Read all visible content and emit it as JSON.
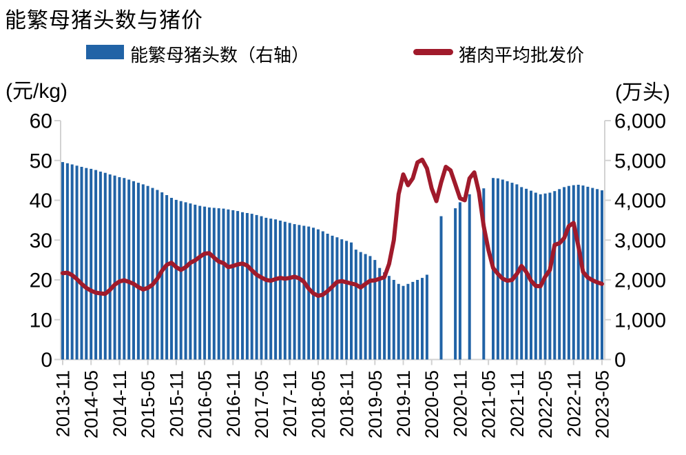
{
  "title": "能繁母猪头数与猪价",
  "legend": {
    "items": [
      {
        "label": "能繁母猪头数（右轴）",
        "type": "bar",
        "color": "#2163A6"
      },
      {
        "label": "猪肉平均批发价",
        "type": "line",
        "color": "#A01A2B"
      }
    ]
  },
  "left_axis": {
    "unit": "(元/kg)",
    "ticks": [
      "60",
      "50",
      "40",
      "30",
      "20",
      "10",
      "0"
    ]
  },
  "right_axis": {
    "unit": "(万头)",
    "ticks": [
      "6,000",
      "5,000",
      "4,000",
      "3,000",
      "2,000",
      "1,000",
      "0"
    ]
  },
  "x_axis": {
    "tick_labels": [
      "2013-11",
      "2014-05",
      "2014-11",
      "2015-05",
      "2015-11",
      "2016-05",
      "2016-11",
      "2017-05",
      "2017-11",
      "2018-05",
      "2018-11",
      "2019-05",
      "2019-11",
      "2020-05",
      "2020-11",
      "2021-05",
      "2021-11",
      "2022-05",
      "2022-11",
      "2023-05"
    ]
  },
  "chart_data": {
    "type": "bar",
    "subtype": "combo-bar-line-dual-axis",
    "title": "能繁母猪头数与猪价",
    "x_start": "2013-11",
    "x_frequency": "monthly",
    "x_end": "2023-05",
    "left_ylabel": "(元/kg)",
    "right_ylabel": "(万头)",
    "left_ylim": [
      0,
      60
    ],
    "right_ylim": [
      0,
      6000
    ],
    "grid": false,
    "legend_position": "top",
    "axis_color": "#D2D2D2",
    "series": [
      {
        "name": "能繁母猪头数（右轴）",
        "type": "bar",
        "axis": "right",
        "color": "#2163A6",
        "values": [
          4960,
          4930,
          4900,
          4870,
          4840,
          4810,
          4790,
          4760,
          4720,
          4690,
          4650,
          4620,
          4580,
          4560,
          4520,
          4480,
          4440,
          4400,
          4360,
          4310,
          4260,
          4200,
          4130,
          4060,
          4010,
          3980,
          3950,
          3920,
          3890,
          3860,
          3840,
          3820,
          3810,
          3800,
          3790,
          3770,
          3750,
          3730,
          3700,
          3680,
          3660,
          3630,
          3600,
          3560,
          3540,
          3520,
          3490,
          3460,
          3430,
          3400,
          3380,
          3360,
          3340,
          3310,
          3270,
          3220,
          3160,
          3110,
          3070,
          3020,
          2980,
          2940,
          2760,
          2700,
          2650,
          2600,
          2500,
          2300,
          2190,
          2100,
          2000,
          1900,
          1850,
          1900,
          1950,
          2000,
          2050,
          2130,
          null,
          null,
          3600,
          null,
          null,
          3800,
          3950,
          null,
          4150,
          null,
          null,
          4300,
          null,
          4560,
          4550,
          4520,
          4480,
          4440,
          4400,
          4330,
          4290,
          4240,
          4190,
          4150,
          4170,
          4190,
          4230,
          4280,
          4330,
          4360,
          4380,
          4390,
          4370,
          4340,
          4310,
          4280,
          4250
        ]
      },
      {
        "name": "猪肉平均批发价",
        "type": "line",
        "axis": "left",
        "color": "#A01A2B",
        "values": [
          21.7,
          21.8,
          21.2,
          20.2,
          19.0,
          18.0,
          17.3,
          16.8,
          16.6,
          16.5,
          17.5,
          18.8,
          19.6,
          19.9,
          19.5,
          19.0,
          18.2,
          17.6,
          18.0,
          18.8,
          20.3,
          22.3,
          23.8,
          24.3,
          23.2,
          22.5,
          23.2,
          24.3,
          24.9,
          25.8,
          26.6,
          26.7,
          25.6,
          24.6,
          24.2,
          23.2,
          23.5,
          23.9,
          24.1,
          23.6,
          22.4,
          21.3,
          20.6,
          20.0,
          19.8,
          20.2,
          20.5,
          20.3,
          20.5,
          20.8,
          20.4,
          19.5,
          17.8,
          16.6,
          16.0,
          16.3,
          17.2,
          18.3,
          19.5,
          19.7,
          19.4,
          19.1,
          18.8,
          18.1,
          19.0,
          19.8,
          19.9,
          20.3,
          20.7,
          24.0,
          30.0,
          41.5,
          46.5,
          43.8,
          45.5,
          49.5,
          50.2,
          48.0,
          43.0,
          39.8,
          44.5,
          48.4,
          47.5,
          44.0,
          40.5,
          40.0,
          45.5,
          47.0,
          42.0,
          33.5,
          27.5,
          23.0,
          21.5,
          20.3,
          19.8,
          20.0,
          21.5,
          23.5,
          22.0,
          19.8,
          18.5,
          18.4,
          20.8,
          22.5,
          28.8,
          29.2,
          30.5,
          33.5,
          34.3,
          28.5,
          22.0,
          20.6,
          19.9,
          19.4,
          19.0
        ]
      }
    ]
  }
}
